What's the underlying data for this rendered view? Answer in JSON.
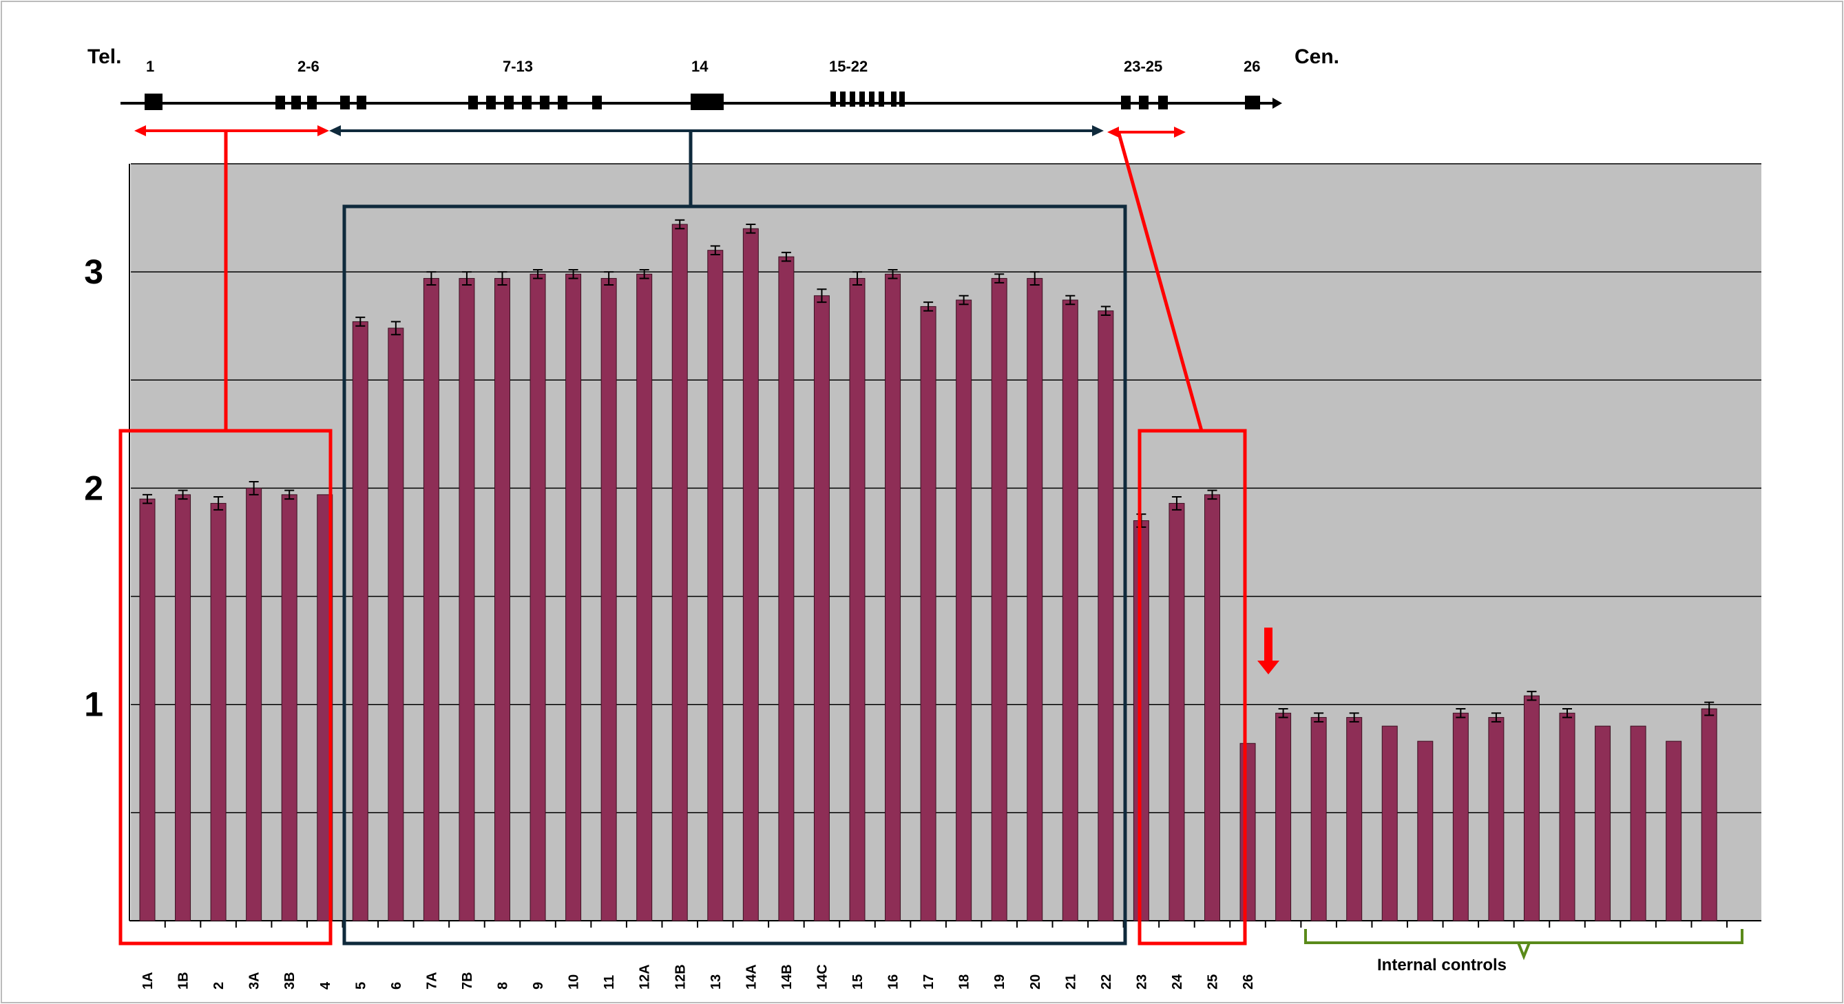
{
  "chart_data": {
    "type": "bar",
    "title": "",
    "xlabel": "",
    "ylabel": "",
    "ylim": [
      0,
      3.5
    ],
    "y_ticks": [
      "1",
      "2",
      "3"
    ],
    "y_tick_values": [
      1,
      2,
      3
    ],
    "grid": true,
    "categories": [
      "1A",
      "1B",
      "2",
      "3A",
      "3B",
      "4",
      "5",
      "6",
      "7A",
      "7B",
      "8",
      "9",
      "10",
      "11",
      "12A",
      "12B",
      "13",
      "14A",
      "14B",
      "14C",
      "15",
      "16",
      "17",
      "18",
      "19",
      "20",
      "21",
      "22",
      "23",
      "24",
      "25",
      "26",
      "",
      "",
      "",
      "",
      "",
      "",
      "",
      "",
      "",
      "",
      "",
      "",
      ""
    ],
    "values": [
      1.95,
      1.97,
      1.93,
      2.0,
      1.97,
      1.97,
      2.77,
      2.74,
      2.97,
      2.97,
      2.97,
      2.99,
      2.99,
      2.97,
      2.99,
      3.22,
      3.1,
      3.2,
      3.07,
      2.89,
      2.97,
      2.99,
      2.84,
      2.87,
      2.97,
      2.97,
      2.87,
      2.82,
      1.85,
      1.93,
      1.97,
      0.82,
      0.96,
      0.94,
      0.94,
      0.9,
      0.83,
      0.96,
      0.94,
      1.04,
      0.96,
      0.9,
      0.9,
      0.83,
      0.98
    ],
    "errors": [
      0.02,
      0.02,
      0.03,
      0.03,
      0.02,
      0.0,
      0.02,
      0.03,
      0.03,
      0.03,
      0.03,
      0.02,
      0.02,
      0.03,
      0.02,
      0.02,
      0.02,
      0.02,
      0.02,
      0.03,
      0.03,
      0.02,
      0.02,
      0.02,
      0.02,
      0.03,
      0.02,
      0.02,
      0.03,
      0.03,
      0.02,
      0.0,
      0.02,
      0.02,
      0.02,
      0.0,
      0.0,
      0.02,
      0.02,
      0.02,
      0.02,
      0.0,
      0.0,
      0.0,
      0.03
    ],
    "bar_color": "#8e2e56",
    "plot_background": "#c0c0c0",
    "annotations": {
      "tel_label": "Tel.",
      "cen_label": "Cen.",
      "internal_controls_label": "Internal controls",
      "map_groups": [
        {
          "label": "1"
        },
        {
          "label": "2-6"
        },
        {
          "label": "7-13"
        },
        {
          "label": "14"
        },
        {
          "label": "15-22"
        },
        {
          "label": "23-25"
        },
        {
          "label": "26"
        }
      ],
      "highlight_colors": {
        "red": "#ff0000",
        "navy": "#0f2a3c",
        "green": "#5a8a1a"
      }
    }
  }
}
